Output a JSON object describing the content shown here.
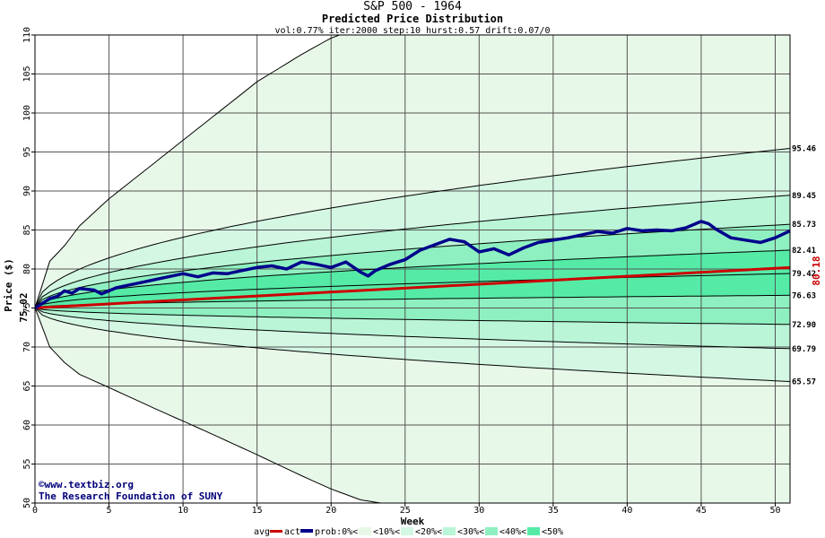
{
  "chart_data": {
    "type": "area",
    "title": "S&P 500 - 1964",
    "subtitle": "Predicted Price Distribution",
    "params": "vol:0.77% iter:2000 step:10 hurst:0.57 drift:0.07/0",
    "xlabel": "Week",
    "ylabel": "Price ($)",
    "xlim": [
      0,
      51
    ],
    "ylim": [
      50,
      110
    ],
    "x_ticks": [
      "0",
      "5",
      "10",
      "15",
      "20",
      "25",
      "30",
      "35",
      "40",
      "45",
      "50"
    ],
    "y_ticks": [
      "50",
      "55",
      "60",
      "65",
      "70",
      "75",
      "80",
      "85",
      "90",
      "95",
      "100",
      "105",
      "110"
    ],
    "grid": true,
    "start_price": "75.02",
    "actual_end_price": "80.18",
    "percentile_end_labels": [
      "95.46",
      "89.45",
      "85.73",
      "82.41",
      "79.42",
      "76.63",
      "72.90",
      "69.79",
      "65.57"
    ],
    "percentile_end_values": [
      95.46,
      89.45,
      85.73,
      82.41,
      79.42,
      76.63,
      72.9,
      69.79,
      65.57
    ],
    "envelope": {
      "weeks": [
        0,
        1,
        2,
        3,
        5,
        8,
        10,
        12,
        15,
        18,
        20,
        22,
        24,
        25,
        30,
        35,
        40,
        45,
        50,
        51
      ],
      "upper": [
        75.02,
        81,
        83,
        85.5,
        89,
        93.5,
        96.5,
        99.5,
        104,
        107.5,
        109.6,
        111,
        111,
        111,
        111,
        111,
        111,
        111,
        111,
        111
      ],
      "lower": [
        75.02,
        70,
        68,
        66.5,
        64.8,
        62.2,
        60.5,
        58.8,
        56.2,
        53.5,
        51.8,
        50.4,
        49.8,
        49.5,
        49.5,
        49.5,
        49.5,
        49.5,
        49.5,
        49.5
      ]
    },
    "bands": [
      {
        "name": "<10%",
        "color": "#e8f8e8"
      },
      {
        "name": "<20%",
        "color": "#d4f7e4"
      },
      {
        "name": "<30%",
        "color": "#b9f5d6"
      },
      {
        "name": "<40%",
        "color": "#8ef0c0"
      },
      {
        "name": "<50%",
        "color": "#55eba6"
      }
    ],
    "series": [
      {
        "name": "avg",
        "color": "#cc0000",
        "weeks": [
          0,
          51
        ],
        "values": [
          75.02,
          80.18
        ]
      },
      {
        "name": "act",
        "color": "#00008b",
        "weeks": [
          0,
          0.5,
          1,
          1.5,
          2,
          2.5,
          3,
          3.5,
          4,
          4.5,
          5,
          5.5,
          6,
          7,
          8,
          9,
          10,
          11,
          12,
          13,
          14,
          15,
          16,
          17,
          18,
          19,
          20,
          21,
          22,
          22.5,
          23,
          24,
          25,
          26,
          27,
          28,
          29,
          30,
          31,
          32,
          33,
          34,
          35,
          36,
          37,
          38,
          39,
          40,
          41,
          42,
          43,
          44,
          45,
          45.5,
          46,
          47,
          48,
          49,
          50,
          51
        ],
        "values": [
          75,
          75.6,
          76.2,
          76.5,
          77.2,
          76.9,
          77.5,
          77.4,
          77.3,
          76.8,
          77.2,
          77.6,
          77.8,
          78.2,
          78.6,
          79.0,
          79.4,
          79.0,
          79.5,
          79.4,
          79.8,
          80.2,
          80.4,
          80.0,
          80.9,
          80.6,
          80.2,
          80.9,
          79.6,
          79.1,
          79.8,
          80.6,
          81.2,
          82.4,
          83.1,
          83.8,
          83.5,
          82.2,
          82.6,
          81.8,
          82.7,
          83.4,
          83.7,
          84.0,
          84.4,
          84.8,
          84.6,
          85.2,
          84.9,
          85.0,
          84.9,
          85.3,
          86.1,
          85.8,
          85.1,
          84.0,
          83.7,
          83.4,
          84.0,
          84.9
        ]
      }
    ],
    "legend": [
      "avg",
      "act",
      "prob:0%<",
      "<10%<",
      "<20%<",
      "<30%<",
      "<40%<",
      "<50%"
    ],
    "legend_placement": "bottom-center"
  },
  "credit": {
    "line1": "©www.textbiz.org",
    "line2": "The Research Foundation of SUNY"
  },
  "colors": {
    "background": "#ffffff",
    "plot_bg": "#ffffff",
    "grid": "#555555",
    "avg": "#cc0000",
    "act": "#00008b",
    "percentile_line": "#000000"
  }
}
